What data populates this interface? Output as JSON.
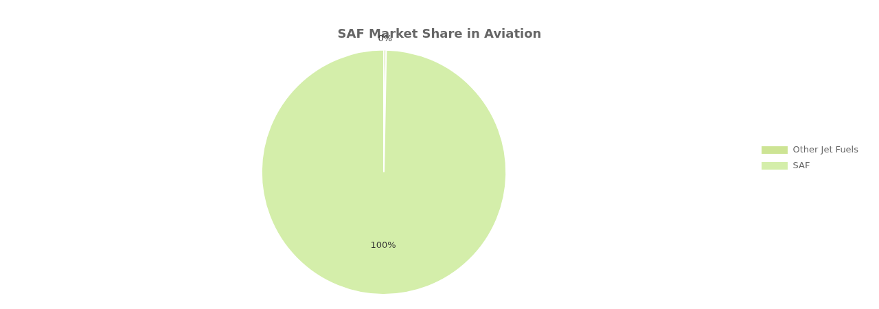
{
  "chart_data": {
    "type": "pie",
    "title": "SAF Market Share in Aviation",
    "categories": [
      "Other Jet Fuels",
      "SAF"
    ],
    "values": [
      0.3,
      99.7
    ],
    "value_labels": [
      "0%",
      "100%"
    ],
    "colors": [
      "#cde494",
      "#d4eeaa"
    ],
    "data_labels": true,
    "legend": "right"
  }
}
